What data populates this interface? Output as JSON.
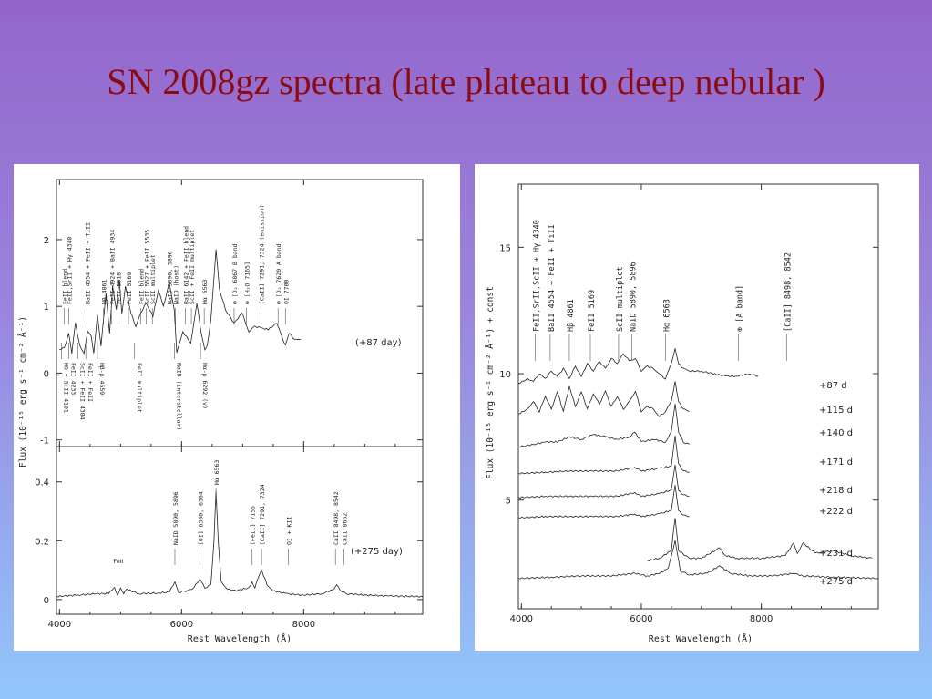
{
  "title": "SN 2008gz spectra (late plateau to deep nebular )",
  "chart_data": [
    {
      "type": "line",
      "panel": "top-left",
      "xlabel": "",
      "ylabel": "Flux (10⁻¹⁵ erg s⁻¹ cm⁻² Å⁻¹)",
      "xlim": [
        3950,
        9950
      ],
      "ylim": [
        -1.1,
        2.9
      ],
      "yticks": [
        "2",
        "1",
        "0",
        "-1"
      ],
      "legend": "(+87 day)",
      "series": [
        {
          "x": [
            4000,
            4080,
            4150,
            4200,
            4260,
            4330,
            4400,
            4460,
            4520,
            4560,
            4620,
            4680,
            4760,
            4820,
            4870,
            4930,
            4980,
            5020,
            5080,
            5170,
            5250,
            5330,
            5420,
            5530,
            5620,
            5700,
            5800,
            5880,
            5920,
            6020,
            6150,
            6250,
            6330,
            6380,
            6420,
            6480,
            6563,
            6620,
            6720,
            6860,
            6990,
            7100,
            7200,
            7300,
            7420,
            7560,
            7640,
            7700,
            7760,
            7850,
            7950
          ],
          "y": [
            0.35,
            0.38,
            0.6,
            0.3,
            0.75,
            0.42,
            0.3,
            0.62,
            0.55,
            0.3,
            0.88,
            0.4,
            1.2,
            0.6,
            1.3,
            0.95,
            1.4,
            0.9,
            1.3,
            0.9,
            0.7,
            0.9,
            1.05,
            0.85,
            1.25,
            1.0,
            1.35,
            0.95,
            0.3,
            0.62,
            0.45,
            1.05,
            0.55,
            0.35,
            0.42,
            0.8,
            1.85,
            1.25,
            0.95,
            0.75,
            0.9,
            0.62,
            0.7,
            0.68,
            0.65,
            0.75,
            0.55,
            0.42,
            0.6,
            0.5,
            0.5
          ]
        }
      ],
      "annotations": [
        {
          "x": 4080,
          "text": "FeII blend",
          "side": "above"
        },
        {
          "x": 4150,
          "text": "FeII,SrII + Hγ 4340",
          "side": "above"
        },
        {
          "x": 4450,
          "text": "BaII 4554 + FeII + TiII",
          "side": "above"
        },
        {
          "x": 4720,
          "text": "Hβ 4861",
          "side": "above"
        },
        {
          "x": 4850,
          "text": "FeII 4924 + BaII 4934",
          "side": "above"
        },
        {
          "x": 4960,
          "text": "FeII 5018",
          "side": "above"
        },
        {
          "x": 5130,
          "text": "FeII 5169",
          "side": "above"
        },
        {
          "x": 5330,
          "text": "FeII blend",
          "side": "above"
        },
        {
          "x": 5420,
          "text": "ScII 5527 + FeII 5535",
          "side": "above"
        },
        {
          "x": 5520,
          "text": "ScII multiplet",
          "side": "above"
        },
        {
          "x": 5790,
          "text": "NaID 5890, 5896",
          "side": "above"
        },
        {
          "x": 5900,
          "text": "NaID (host)",
          "side": "above"
        },
        {
          "x": 6060,
          "text": "BaII 6142 + FeII blend",
          "side": "above"
        },
        {
          "x": 6160,
          "text": "ScII + FeII multiplet",
          "side": "above"
        },
        {
          "x": 6370,
          "text": "Hα 6563",
          "side": "above"
        },
        {
          "x": 6860,
          "text": "⊕ [O₂ 6867 B band]",
          "side": "above"
        },
        {
          "x": 7060,
          "text": "⊕ [H₂O 7165]",
          "side": "above"
        },
        {
          "x": 7300,
          "text": "[CaII] 7291, 7324 (emission)",
          "side": "above"
        },
        {
          "x": 7580,
          "text": "⊕ [O₂ 7620 A band]",
          "side": "above"
        },
        {
          "x": 7700,
          "text": "OI 7700",
          "side": "above"
        },
        {
          "x": 4030,
          "text": "Hδ + SrII 4101",
          "side": "below"
        },
        {
          "x": 4150,
          "text": "FeII 4233",
          "side": "below"
        },
        {
          "x": 4300,
          "text": "ScII + FeII 4384",
          "side": "below"
        },
        {
          "x": 4430,
          "text": "FeII + FeII",
          "side": "below"
        },
        {
          "x": 4620,
          "text": "Hβ-p 4659",
          "side": "below"
        },
        {
          "x": 5230,
          "text": "FeII multiplet",
          "side": "below"
        },
        {
          "x": 5880,
          "text": "NaID (interstellar)",
          "side": "below"
        },
        {
          "x": 6310,
          "text": "Hα-p 6292 (v)",
          "side": "below"
        }
      ]
    },
    {
      "type": "line",
      "panel": "bottom-left",
      "xlabel": "Rest Wavelength (Å)",
      "ylabel": "",
      "xlim": [
        3950,
        9950
      ],
      "ylim": [
        -0.05,
        0.52
      ],
      "xticks": [
        "4000",
        "6000",
        "8000"
      ],
      "yticks": [
        "0.4",
        "0.2",
        "0"
      ],
      "legend": "(+275 day)",
      "series": [
        {
          "x": [
            3950,
            4300,
            4600,
            4800,
            4900,
            4950,
            5000,
            5050,
            5100,
            5300,
            5600,
            5800,
            5890,
            5950,
            6100,
            6200,
            6300,
            6380,
            6480,
            6530,
            6563,
            6600,
            6650,
            6750,
            6900,
            7100,
            7155,
            7200,
            7250,
            7310,
            7400,
            7500,
            7700,
            8000,
            8300,
            8500,
            8540,
            8600,
            8700,
            9000,
            9400,
            9950
          ],
          "y": [
            0.01,
            0.015,
            0.02,
            0.02,
            0.04,
            0.015,
            0.04,
            0.018,
            0.035,
            0.02,
            0.022,
            0.025,
            0.06,
            0.025,
            0.03,
            0.04,
            0.07,
            0.04,
            0.05,
            0.2,
            0.37,
            0.2,
            0.06,
            0.035,
            0.03,
            0.04,
            0.06,
            0.04,
            0.07,
            0.1,
            0.05,
            0.03,
            0.02,
            0.015,
            0.02,
            0.035,
            0.05,
            0.03,
            0.02,
            0.015,
            0.012,
            0.01
          ]
        }
      ],
      "annotations": [
        {
          "x": 5000,
          "text": "FeII"
        },
        {
          "x": 5890,
          "text": "NaID 5890, 5896"
        },
        {
          "x": 6300,
          "text": "[OI] 6300, 6364"
        },
        {
          "x": 6563,
          "text": "Hα 6563"
        },
        {
          "x": 7155,
          "text": "[FeII] 7155"
        },
        {
          "x": 7310,
          "text": "[CaII] 7291, 7324"
        },
        {
          "x": 7750,
          "text": "OI + KII"
        },
        {
          "x": 8520,
          "text": "CaII 8498, 8542"
        },
        {
          "x": 8660,
          "text": "CaII 8662"
        }
      ]
    },
    {
      "type": "line",
      "panel": "right",
      "xlabel": "Rest Wavelength (Å)",
      "ylabel": "Flux (10⁻¹⁵ erg s⁻¹ cm⁻² Å⁻¹) + const",
      "xlim": [
        3950,
        9950
      ],
      "ylim": [
        0.7,
        17.5
      ],
      "xticks": [
        "4000",
        "6000",
        "8000"
      ],
      "yticks": [
        "15",
        "10",
        "5"
      ],
      "annotations": [
        {
          "x": 4230,
          "text": "FeII,SrII,ScII + Hγ 4340"
        },
        {
          "x": 4480,
          "text": "BaII 4554 + FeII + TiII"
        },
        {
          "x": 4800,
          "text": "Hβ 4861"
        },
        {
          "x": 5150,
          "text": "FeII 5169"
        },
        {
          "x": 5620,
          "text": "ScII multiplet"
        },
        {
          "x": 5840,
          "text": "NaID 5890, 5896"
        },
        {
          "x": 6400,
          "text": "Hα 6563"
        },
        {
          "x": 7620,
          "text": "⊕ [A band]"
        },
        {
          "x": 8420,
          "text": "[CaII] 8498, 8542"
        }
      ],
      "series": [
        {
          "name": "+87 d",
          "offset": 9.6,
          "xmax": 7950,
          "x": [
            3950,
            4100,
            4200,
            4300,
            4400,
            4500,
            4600,
            4700,
            4800,
            4900,
            5000,
            5100,
            5200,
            5300,
            5400,
            5500,
            5600,
            5700,
            5800,
            5900,
            6000,
            6100,
            6200,
            6300,
            6400,
            6500,
            6563,
            6620,
            6700,
            6800,
            7000,
            7200,
            7400,
            7600,
            7800,
            7950
          ],
          "y": [
            0.0,
            0.2,
            0.1,
            0.4,
            0.2,
            0.5,
            0.3,
            0.6,
            0.2,
            0.7,
            0.3,
            0.8,
            0.5,
            0.9,
            0.6,
            1.0,
            0.8,
            1.2,
            0.9,
            1.0,
            0.5,
            0.7,
            0.6,
            0.4,
            0.2,
            0.8,
            1.4,
            0.8,
            0.6,
            0.5,
            0.5,
            0.4,
            0.3,
            0.3,
            0.4,
            0.3
          ]
        },
        {
          "name": "+115 d",
          "offset": 8.3,
          "xmax": 6800,
          "x": [
            3950,
            4100,
            4200,
            4300,
            4400,
            4500,
            4600,
            4700,
            4800,
            4900,
            5000,
            5100,
            5200,
            5300,
            5400,
            5500,
            5600,
            5700,
            5800,
            5900,
            6000,
            6100,
            6200,
            6300,
            6400,
            6500,
            6563,
            6620,
            6700,
            6800
          ],
          "y": [
            0.1,
            0.3,
            0.6,
            0.2,
            0.8,
            0.3,
            1.0,
            0.2,
            1.2,
            0.4,
            1.0,
            0.3,
            0.9,
            0.5,
            1.0,
            0.4,
            0.8,
            0.3,
            0.6,
            1.0,
            0.2,
            0.4,
            0.3,
            0.0,
            0.2,
            0.6,
            1.4,
            0.6,
            0.3,
            0.2
          ]
        },
        {
          "name": "+140 d",
          "offset": 7.1,
          "xmax": 6800,
          "x": [
            3950,
            4200,
            4400,
            4600,
            4800,
            5000,
            5200,
            5400,
            5600,
            5800,
            5890,
            6000,
            6200,
            6400,
            6500,
            6563,
            6620,
            6700,
            6800
          ],
          "y": [
            0.0,
            0.1,
            0.2,
            0.2,
            0.4,
            0.3,
            0.5,
            0.4,
            0.3,
            0.4,
            0.6,
            0.2,
            0.3,
            0.2,
            0.6,
            1.7,
            0.6,
            0.2,
            0.1
          ]
        },
        {
          "name": "+171 d",
          "offset": 6.05,
          "xmax": 6800,
          "x": [
            3950,
            4400,
            4800,
            5200,
            5600,
            5890,
            6000,
            6300,
            6500,
            6563,
            6620,
            6700,
            6800
          ],
          "y": [
            0.0,
            0.05,
            0.1,
            0.1,
            0.1,
            0.25,
            0.1,
            0.2,
            0.3,
            1.5,
            0.4,
            0.1,
            0.05
          ]
        },
        {
          "name": "+218 d",
          "offset": 5.1,
          "xmax": 6800,
          "x": [
            3950,
            4400,
            4800,
            5200,
            5600,
            5890,
            6000,
            6300,
            6500,
            6563,
            6620,
            6700,
            6800
          ],
          "y": [
            0.0,
            0.05,
            0.05,
            0.05,
            0.05,
            0.2,
            0.05,
            0.15,
            0.3,
            1.3,
            0.3,
            0.1,
            0.05
          ]
        },
        {
          "name": "+222 d",
          "offset": 4.3,
          "xmax": 6800,
          "x": [
            3950,
            4400,
            4800,
            5200,
            5600,
            5890,
            6000,
            6300,
            6500,
            6563,
            6620,
            6700,
            6800
          ],
          "y": [
            0.0,
            0.05,
            0.05,
            0.05,
            0.05,
            0.15,
            0.05,
            0.15,
            0.3,
            1.3,
            0.3,
            0.1,
            0.05
          ]
        },
        {
          "name": "+231 d",
          "offset": 2.6,
          "xmin": 6100,
          "xmax": 9850,
          "x": [
            6100,
            6300,
            6500,
            6563,
            6620,
            6800,
            7000,
            7300,
            7400,
            7600,
            8000,
            8400,
            8540,
            8600,
            8700,
            8900,
            9200,
            9500,
            9850
          ],
          "y": [
            0.0,
            0.1,
            0.4,
            1.7,
            0.4,
            0.1,
            0.1,
            0.5,
            0.2,
            0.1,
            0.1,
            0.2,
            0.7,
            0.3,
            0.7,
            0.3,
            0.4,
            0.2,
            0.1
          ]
        },
        {
          "name": "+275 d",
          "offset": 1.9,
          "xmax": 9950,
          "x": [
            3950,
            4500,
            5000,
            5500,
            5890,
            6100,
            6300,
            6450,
            6563,
            6650,
            6800,
            7100,
            7300,
            7500,
            7800,
            8200,
            8540,
            8700,
            9200,
            9950
          ],
          "y": [
            0.0,
            0.05,
            0.1,
            0.1,
            0.2,
            0.1,
            0.2,
            0.4,
            1.5,
            0.3,
            0.15,
            0.2,
            0.5,
            0.2,
            0.1,
            0.1,
            0.2,
            0.1,
            0.05,
            0.0
          ]
        }
      ]
    }
  ]
}
